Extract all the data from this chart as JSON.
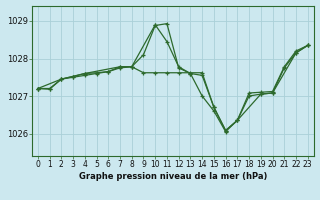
{
  "title": "Graphe pression niveau de la mer (hPa)",
  "bg_color": "#cce8ef",
  "grid_color": "#aad0d8",
  "line_color": "#2d6a2d",
  "xlim": [
    -0.5,
    23.5
  ],
  "ylim": [
    1025.4,
    1029.4
  ],
  "yticks": [
    1026,
    1027,
    1028,
    1029
  ],
  "xticks": [
    0,
    1,
    2,
    3,
    4,
    5,
    6,
    7,
    8,
    9,
    10,
    11,
    12,
    13,
    14,
    15,
    16,
    17,
    18,
    19,
    20,
    21,
    22,
    23
  ],
  "series1_x": [
    0,
    1,
    2,
    3,
    4,
    5,
    6,
    7,
    8,
    9,
    10,
    11,
    12,
    13,
    14,
    15,
    16,
    17,
    18,
    19,
    20,
    21,
    22,
    23
  ],
  "series1_y": [
    1027.2,
    1027.2,
    1027.45,
    1027.5,
    1027.55,
    1027.6,
    1027.65,
    1027.75,
    1027.78,
    1028.1,
    1028.88,
    1028.93,
    1027.75,
    1027.6,
    1027.55,
    1026.7,
    1026.08,
    1026.35,
    1027.0,
    1027.05,
    1027.08,
    1027.75,
    1028.15,
    1028.35
  ],
  "series2_x": [
    0,
    1,
    2,
    3,
    4,
    5,
    6,
    7,
    8,
    9,
    10,
    11,
    12,
    13,
    14,
    15,
    16,
    17,
    18,
    19,
    20,
    21,
    22,
    23
  ],
  "series2_y": [
    1027.2,
    1027.18,
    1027.45,
    1027.52,
    1027.6,
    1027.62,
    1027.65,
    1027.78,
    1027.78,
    1027.62,
    1027.62,
    1027.62,
    1027.62,
    1027.62,
    1027.62,
    1026.7,
    1026.08,
    1026.35,
    1027.08,
    1027.1,
    1027.12,
    1027.78,
    1028.2,
    1028.35
  ],
  "series3_x": [
    0,
    2,
    4,
    7,
    8,
    10,
    11,
    12,
    13,
    14,
    15,
    16,
    17,
    19,
    20,
    22,
    23
  ],
  "series3_y": [
    1027.2,
    1027.45,
    1027.6,
    1027.78,
    1027.78,
    1028.9,
    1028.45,
    1027.78,
    1027.6,
    1027.0,
    1026.6,
    1026.05,
    1026.35,
    1027.05,
    1027.08,
    1028.15,
    1028.35
  ]
}
